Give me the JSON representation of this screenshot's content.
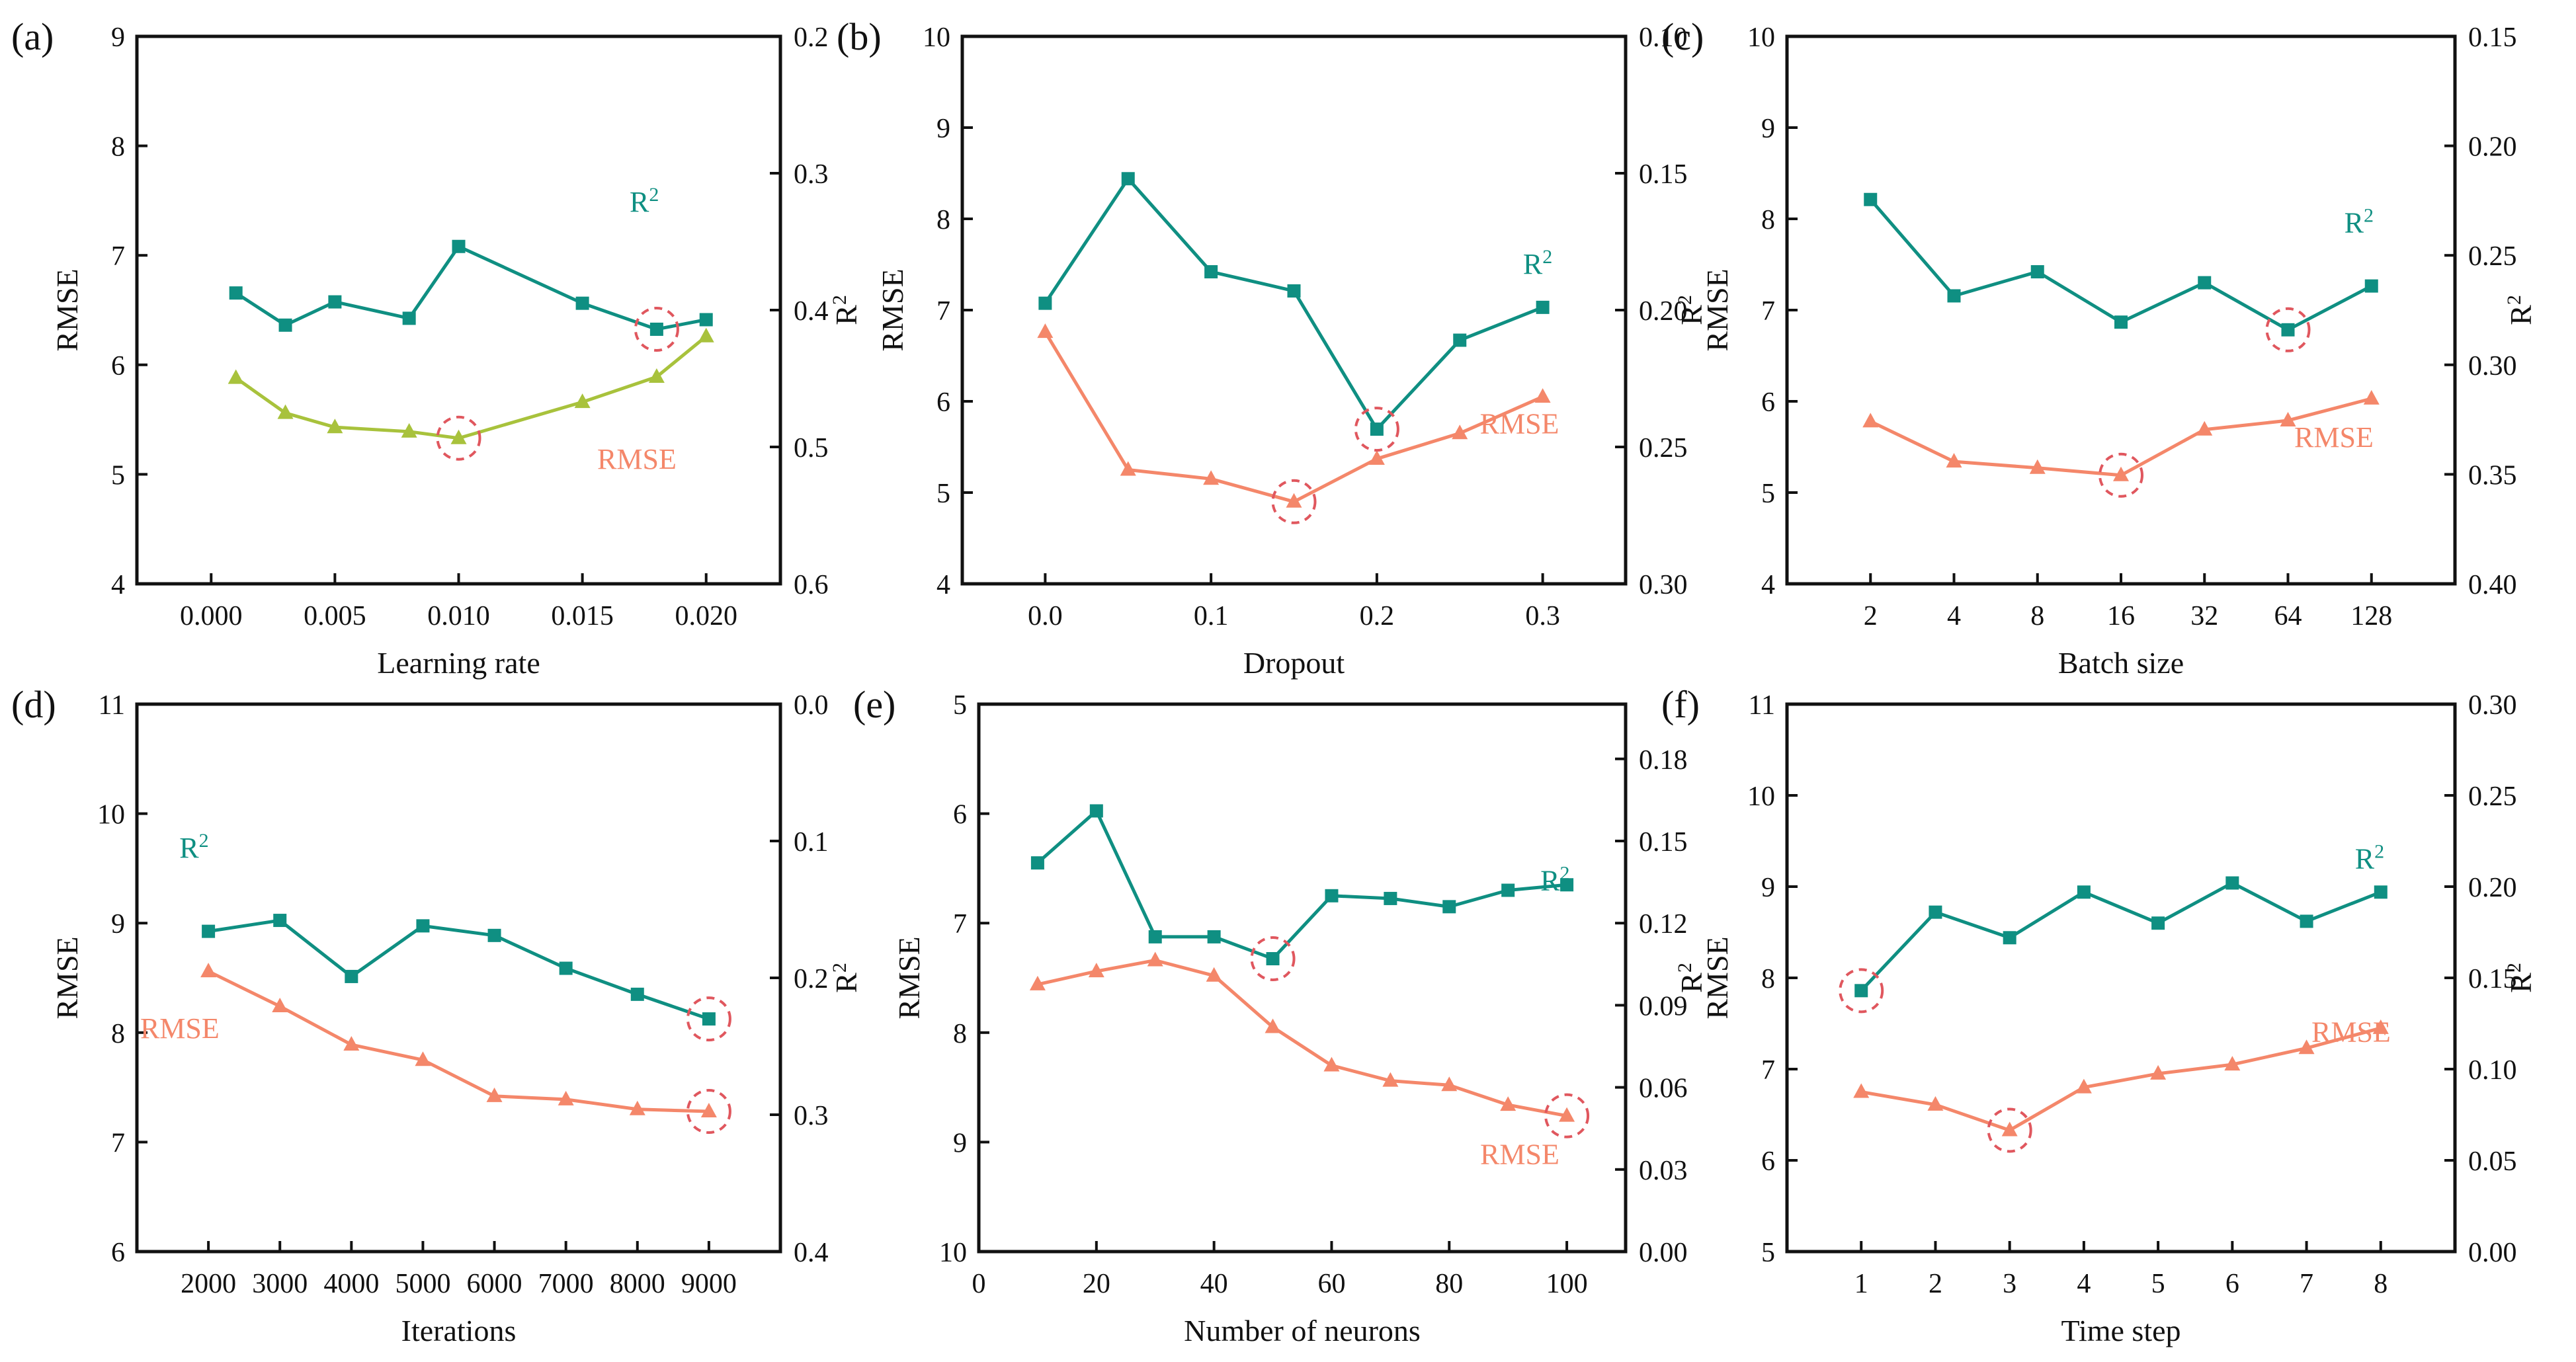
{
  "colors": {
    "r2": "#0f8f82",
    "rmse": "#f4876a",
    "rmse_a": "#a8c23c",
    "highlight": "#e0575e"
  },
  "chart_data": [
    {
      "panel": "(a)",
      "type": "line",
      "xtype": "linear",
      "xlabel": "Learning rate",
      "ylabel": "RMSE",
      "y2label": "R²",
      "xlim": [
        -0.003,
        0.023
      ],
      "xticks": [
        0.0,
        0.005,
        0.01,
        0.015,
        0.02
      ],
      "xticklabels": [
        "0.000",
        "0.005",
        "0.010",
        "0.015",
        "0.020"
      ],
      "ylim": [
        4,
        9
      ],
      "yticks": [
        4,
        5,
        6,
        7,
        8,
        9
      ],
      "yticklabels": [
        "4",
        "5",
        "6",
        "7",
        "8",
        "9"
      ],
      "y2lim": [
        0.6,
        0.2
      ],
      "y2ticks": [
        0.6,
        0.5,
        0.4,
        0.3,
        0.2
      ],
      "y2ticklabels": [
        "0.6",
        "0.5",
        "0.4",
        "0.3",
        "0.2"
      ],
      "series": [
        {
          "name": "R²",
          "axis": "right",
          "marker": "square",
          "color": "#0f8f82",
          "x": [
            0.001,
            0.003,
            0.005,
            0.008,
            0.01,
            0.015,
            0.018,
            0.02
          ],
          "values": [
            0.3875,
            0.411,
            0.394,
            0.406,
            0.3535,
            0.395,
            0.414,
            0.407
          ]
        },
        {
          "name": "RMSE",
          "axis": "left",
          "marker": "triangle",
          "color": "#a8c23c",
          "x": [
            0.001,
            0.003,
            0.005,
            0.008,
            0.01,
            0.015,
            0.018,
            0.02
          ],
          "values": [
            5.88,
            5.56,
            5.43,
            5.39,
            5.33,
            5.66,
            5.89,
            6.26
          ]
        }
      ],
      "annotations": [
        {
          "text": "R²",
          "x": 0.0175,
          "y": 7.4
        },
        {
          "text": "RMSE",
          "x": 0.0172,
          "y": 5.05
        }
      ],
      "circled": [
        {
          "series": 0,
          "index": 6
        },
        {
          "series": 1,
          "index": 4
        }
      ]
    },
    {
      "panel": "(b)",
      "type": "line",
      "xtype": "linear",
      "xlabel": "Dropout",
      "ylabel": "RMSE",
      "y2label": "R²",
      "xlim": [
        -0.05,
        0.35
      ],
      "xticks": [
        0.0,
        0.1,
        0.2,
        0.3
      ],
      "xticklabels": [
        "0.0",
        "0.1",
        "0.2",
        "0.3"
      ],
      "ylim": [
        4,
        10
      ],
      "yticks": [
        4,
        5,
        6,
        7,
        8,
        9,
        10
      ],
      "yticklabels": [
        "4",
        "5",
        "6",
        "7",
        "8",
        "9",
        "10"
      ],
      "y2lim": [
        0.3,
        0.1
      ],
      "y2ticks": [
        0.3,
        0.25,
        0.2,
        0.15,
        0.1
      ],
      "y2ticklabels": [
        "0.30",
        "0.25",
        "0.20",
        "0.15",
        "0.10"
      ],
      "series": [
        {
          "name": "R²",
          "axis": "right",
          "marker": "square",
          "color": "#0f8f82",
          "x": [
            0.0,
            0.05,
            0.1,
            0.15,
            0.2,
            0.25,
            0.3
          ],
          "values": [
            0.1975,
            0.152,
            0.186,
            0.193,
            0.2435,
            0.211,
            0.199
          ]
        },
        {
          "name": "RMSE",
          "axis": "left",
          "marker": "triangle",
          "color": "#f4876a",
          "x": [
            0.0,
            0.05,
            0.1,
            0.15,
            0.2,
            0.25,
            0.3
          ],
          "values": [
            6.76,
            5.25,
            5.15,
            4.9,
            5.37,
            5.65,
            6.05
          ]
        }
      ],
      "annotations": [
        {
          "text": "R²",
          "x": 0.297,
          "y": 7.4
        },
        {
          "text": "RMSE",
          "x": 0.286,
          "y": 5.65
        }
      ],
      "circled": [
        {
          "series": 0,
          "index": 4
        },
        {
          "series": 1,
          "index": 3
        }
      ]
    },
    {
      "panel": "(c)",
      "type": "line",
      "xtype": "category",
      "xlabel": "Batch size",
      "ylabel": "RMSE",
      "y2label": "R²",
      "xlim": [
        0,
        8
      ],
      "xticks": [
        1,
        2,
        3,
        4,
        5,
        6,
        7
      ],
      "xticklabels": [
        "2",
        "4",
        "8",
        "16",
        "32",
        "64",
        "128"
      ],
      "ylim": [
        4,
        10
      ],
      "yticks": [
        4,
        5,
        6,
        7,
        8,
        9,
        10
      ],
      "yticklabels": [
        "4",
        "5",
        "6",
        "7",
        "8",
        "9",
        "10"
      ],
      "y2lim": [
        0.4,
        0.15
      ],
      "y2ticks": [
        0.4,
        0.35,
        0.3,
        0.25,
        0.2,
        0.15
      ],
      "y2ticklabels": [
        "0.40",
        "0.35",
        "0.30",
        "0.25",
        "0.20",
        "0.15"
      ],
      "series": [
        {
          "name": "R²",
          "axis": "right",
          "marker": "square",
          "color": "#0f8f82",
          "x": [
            1,
            2,
            3,
            4,
            5,
            6,
            7
          ],
          "values": [
            0.2245,
            0.2685,
            0.2575,
            0.2805,
            0.2625,
            0.284,
            0.264
          ]
        },
        {
          "name": "RMSE",
          "axis": "left",
          "marker": "triangle",
          "color": "#f4876a",
          "x": [
            1,
            2,
            3,
            4,
            5,
            6,
            7
          ],
          "values": [
            5.78,
            5.34,
            5.27,
            5.19,
            5.69,
            5.79,
            6.03
          ]
        }
      ],
      "annotations": [
        {
          "text": "R²",
          "x": 6.85,
          "y": 7.85
        },
        {
          "text": "RMSE",
          "x": 6.55,
          "y": 5.5
        }
      ],
      "circled": [
        {
          "series": 0,
          "index": 5
        },
        {
          "series": 1,
          "index": 3
        }
      ]
    },
    {
      "panel": "(d)",
      "type": "line",
      "xtype": "linear",
      "xlabel": "Iterations",
      "ylabel": "RMSE",
      "y2label": "R²",
      "xlim": [
        1000,
        10000
      ],
      "xticks": [
        2000,
        3000,
        4000,
        5000,
        6000,
        7000,
        8000,
        9000
      ],
      "xticklabels": [
        "2000",
        "3000",
        "4000",
        "5000",
        "6000",
        "7000",
        "8000",
        "9000"
      ],
      "ylim": [
        6,
        11
      ],
      "yticks": [
        6,
        7,
        8,
        9,
        10,
        11
      ],
      "yticklabels": [
        "6",
        "7",
        "8",
        "9",
        "10",
        "11"
      ],
      "y2lim": [
        0.4,
        0.0
      ],
      "y2ticks": [
        0.4,
        0.3,
        0.2,
        0.1,
        0.0
      ],
      "y2ticklabels": [
        "0.4",
        "0.3",
        "0.2",
        "0.1",
        "0.0"
      ],
      "series": [
        {
          "name": "R²",
          "axis": "right",
          "marker": "square",
          "color": "#0f8f82",
          "x": [
            2000,
            3000,
            4000,
            5000,
            6000,
            7000,
            8000,
            9000
          ],
          "values": [
            0.166,
            0.158,
            0.199,
            0.162,
            0.169,
            0.193,
            0.212,
            0.23
          ]
        },
        {
          "name": "RMSE",
          "axis": "left",
          "marker": "triangle",
          "color": "#f4876a",
          "x": [
            2000,
            3000,
            4000,
            5000,
            6000,
            7000,
            8000,
            9000
          ],
          "values": [
            8.56,
            8.24,
            7.89,
            7.75,
            7.42,
            7.39,
            7.3,
            7.28
          ]
        }
      ],
      "annotations": [
        {
          "text": "R²",
          "x": 1800,
          "y": 9.6
        },
        {
          "text": "RMSE",
          "x": 1600,
          "y": 7.95
        }
      ],
      "circled": [
        {
          "series": 0,
          "index": 7
        },
        {
          "series": 1,
          "index": 7
        }
      ]
    },
    {
      "panel": "(e)",
      "type": "line",
      "xtype": "linear",
      "xlabel": "Number of neurons",
      "ylabel": "RMSE",
      "y2label": "R²",
      "xlim": [
        0,
        110
      ],
      "xticks": [
        0,
        20,
        40,
        60,
        80,
        100
      ],
      "xticklabels": [
        "0",
        "20",
        "40",
        "60",
        "80",
        "100"
      ],
      "ylim": [
        10,
        5
      ],
      "yticks": [
        5,
        6,
        7,
        8,
        9,
        10
      ],
      "yticklabels": [
        "5",
        "6",
        "7",
        "8",
        "9",
        "10"
      ],
      "y2lim": [
        0.0,
        0.2
      ],
      "y2ticks": [
        0.0,
        0.03,
        0.06,
        0.09,
        0.12,
        0.15,
        0.18
      ],
      "y2ticklabels": [
        "0.00",
        "0.03",
        "0.06",
        "0.09",
        "0.12",
        "0.15",
        "0.18"
      ],
      "series": [
        {
          "name": "R²",
          "axis": "right",
          "marker": "square",
          "color": "#0f8f82",
          "x": [
            10,
            20,
            30,
            40,
            50,
            60,
            70,
            80,
            90,
            100
          ],
          "values": [
            0.142,
            0.161,
            0.115,
            0.115,
            0.107,
            0.13,
            0.129,
            0.126,
            0.132,
            0.134
          ]
        },
        {
          "name": "RMSE",
          "axis": "left",
          "marker": "triangle",
          "color": "#f4876a",
          "x": [
            10,
            20,
            30,
            40,
            50,
            60,
            70,
            80,
            90,
            100
          ],
          "values": [
            7.56,
            7.44,
            7.34,
            7.48,
            7.95,
            8.3,
            8.44,
            8.48,
            8.66,
            8.76
          ]
        }
      ],
      "annotations": [
        {
          "text": "R²",
          "x": 98,
          "y": 6.7
        },
        {
          "text": "RMSE",
          "x": 92,
          "y": 9.2
        }
      ],
      "circled": [
        {
          "series": 0,
          "index": 4
        },
        {
          "series": 1,
          "index": 9
        }
      ]
    },
    {
      "panel": "(f)",
      "type": "line",
      "xtype": "linear",
      "xlabel": "Time step",
      "ylabel": "RMSE",
      "y2label": "R²",
      "xlim": [
        0,
        9
      ],
      "xticks": [
        1,
        2,
        3,
        4,
        5,
        6,
        7,
        8
      ],
      "xticklabels": [
        "1",
        "2",
        "3",
        "4",
        "5",
        "6",
        "7",
        "8"
      ],
      "ylim": [
        5,
        11
      ],
      "yticks": [
        5,
        6,
        7,
        8,
        9,
        10,
        11
      ],
      "yticklabels": [
        "5",
        "6",
        "7",
        "8",
        "9",
        "10",
        "11"
      ],
      "y2lim": [
        0.0,
        0.3
      ],
      "y2ticks": [
        0.0,
        0.05,
        0.1,
        0.15,
        0.2,
        0.25,
        0.3
      ],
      "y2ticklabels": [
        "0.00",
        "0.05",
        "0.10",
        "0.15",
        "0.20",
        "0.25",
        "0.30"
      ],
      "series": [
        {
          "name": "R²",
          "axis": "right",
          "marker": "square",
          "color": "#0f8f82",
          "x": [
            1,
            2,
            3,
            4,
            5,
            6,
            7,
            8
          ],
          "values": [
            0.143,
            0.186,
            0.172,
            0.197,
            0.18,
            0.202,
            0.181,
            0.197
          ]
        },
        {
          "name": "RMSE",
          "axis": "left",
          "marker": "triangle",
          "color": "#f4876a",
          "x": [
            1,
            2,
            3,
            4,
            5,
            6,
            7,
            8
          ],
          "values": [
            6.75,
            6.61,
            6.33,
            6.8,
            6.95,
            7.05,
            7.23,
            7.45
          ]
        }
      ],
      "annotations": [
        {
          "text": "R²",
          "x": 7.85,
          "y": 9.2
        },
        {
          "text": "RMSE",
          "x": 7.6,
          "y": 7.3
        }
      ],
      "circled": [
        {
          "series": 0,
          "index": 0
        },
        {
          "series": 1,
          "index": 2
        }
      ]
    }
  ]
}
